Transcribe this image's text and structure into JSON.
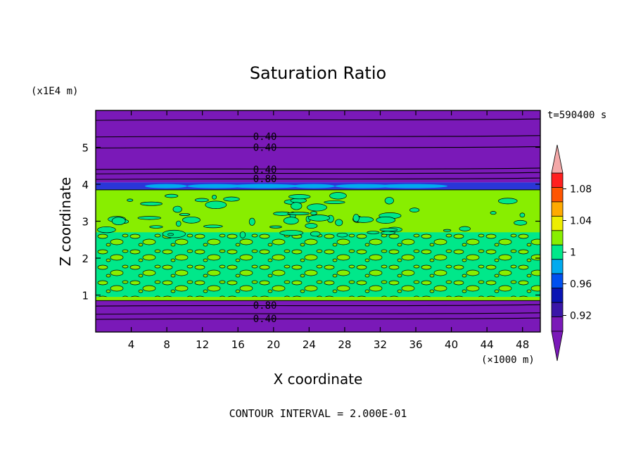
{
  "chart_data": {
    "type": "heatmap",
    "title": "Saturation Ratio",
    "xlabel": "X coordinate",
    "ylabel": "Z coordinate",
    "x_unit_label": "(×1000 m)",
    "y_unit_label": "(x1E4 m)",
    "time_label": "t=590400 s",
    "footer": "CONTOUR INTERVAL = 2.000E-01",
    "xlim": [
      0,
      50
    ],
    "ylim": [
      0,
      6
    ],
    "x_ticks": [
      4,
      8,
      12,
      16,
      20,
      24,
      28,
      32,
      36,
      40,
      44,
      48
    ],
    "y_ticks": [
      1,
      2,
      3,
      4,
      5
    ],
    "contour_labels": [
      {
        "text": "0.40",
        "x": 17.7,
        "z": 5.3
      },
      {
        "text": "0.40",
        "x": 17.7,
        "z": 5.0
      },
      {
        "text": "0.40",
        "x": 17.7,
        "z": 4.4
      },
      {
        "text": "0.80",
        "x": 17.7,
        "z": 4.15
      },
      {
        "text": "0.80",
        "x": 17.7,
        "z": 0.72
      },
      {
        "text": "0.40",
        "x": 17.7,
        "z": 0.36
      }
    ],
    "contour_lines_z": [
      5.75,
      5.3,
      5.0,
      4.42,
      4.3,
      4.15,
      0.72,
      0.5,
      0.36
    ],
    "colorbar": {
      "tick_labels": [
        "1.08",
        "1.04",
        "1",
        "0.96",
        "0.92"
      ],
      "levels": [
        0.9,
        0.92,
        0.94,
        0.96,
        0.98,
        1.0,
        1.02,
        1.04,
        1.06,
        1.08,
        1.1
      ],
      "colors": [
        "#7a19b8",
        "#3a16a8",
        "#0a14b4",
        "#0050f0",
        "#00aaee",
        "#00e88a",
        "#88ee00",
        "#eeee00",
        "#ffaa00",
        "#ff5500",
        "#ff1f1f"
      ],
      "overflow_high_color": "#f4a8a8",
      "underflow_low_color": "#7a19b8"
    },
    "regions": [
      {
        "z_range": [
          4.05,
          6.0
        ],
        "value": "< 0.90",
        "color": "#7a19b8"
      },
      {
        "z_range": [
          3.85,
          4.05
        ],
        "value": "0.92-0.98",
        "color": "#2a36d8"
      },
      {
        "z_range": [
          0.85,
          3.85
        ],
        "value": "0.98-1.02",
        "color": "#88ee00"
      },
      {
        "z_range": [
          0.0,
          0.85
        ],
        "value": "< 0.90",
        "color": "#7a19b8"
      }
    ]
  }
}
